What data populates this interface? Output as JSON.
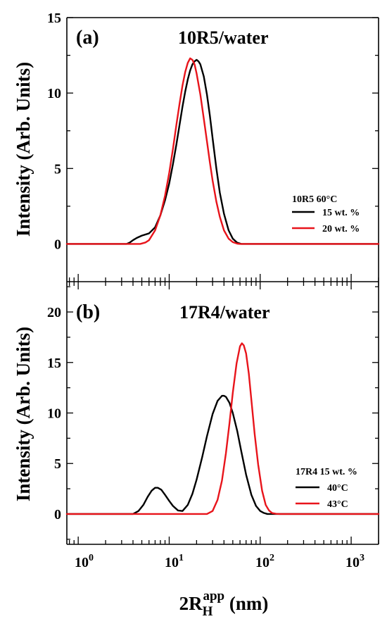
{
  "colors": {
    "black": "#000000",
    "red": "#e8141b"
  },
  "ylabel": "Intensity (Arb. Units)",
  "xlabel": {
    "main": "2R",
    "sub": "H",
    "sup": "app",
    "unit": " (nm)"
  },
  "x_tick_labels": [
    {
      "base": "10",
      "exp": "0"
    },
    {
      "base": "10",
      "exp": "1"
    },
    {
      "base": "10",
      "exp": "2"
    },
    {
      "base": "10",
      "exp": "3"
    }
  ],
  "chart_data": [
    {
      "type": "line",
      "panel_label": "(a)",
      "title": "10R5/water",
      "xscale": "log",
      "xlim": [
        0.75,
        2000
      ],
      "ylim": [
        -2.5,
        15
      ],
      "yticks": [
        0,
        5,
        10,
        15
      ],
      "y_tick_labels": [
        "0",
        "5",
        "10",
        "15"
      ],
      "legend": {
        "title": "10R5 60°C",
        "placement": "right-middle"
      },
      "series": [
        {
          "name": "15 wt. %",
          "color": "#000000",
          "x": [
            3.4,
            3.7,
            4.0,
            4.4,
            5.0,
            6.0,
            7.0,
            8.0,
            9.0,
            10.0,
            11.0,
            12.0,
            13.0,
            14.0,
            15.0,
            16.0,
            17.0,
            18.0,
            19.0,
            20.0,
            21.0,
            22.0,
            24.0,
            26.0,
            28.0,
            30.0,
            33.0,
            36.0,
            40.0,
            45.0,
            50.0,
            56.0,
            62.0
          ],
          "y": [
            0.0,
            0.1,
            0.25,
            0.4,
            0.55,
            0.7,
            1.1,
            1.9,
            2.9,
            4.0,
            5.3,
            6.6,
            7.9,
            9.1,
            10.1,
            10.9,
            11.5,
            11.9,
            12.1,
            12.2,
            12.1,
            11.9,
            11.1,
            9.9,
            8.5,
            7.0,
            5.0,
            3.4,
            2.0,
            0.9,
            0.35,
            0.08,
            0.0
          ]
        },
        {
          "name": "20 wt. %",
          "color": "#e8141b",
          "x": [
            4.8,
            5.5,
            6.0,
            7.0,
            8.0,
            9.0,
            10.0,
            11.0,
            12.0,
            13.0,
            14.0,
            15.0,
            16.0,
            17.0,
            18.0,
            19.0,
            20.0,
            22.0,
            24.0,
            26.0,
            28.0,
            30.0,
            33.0,
            36.0,
            40.0,
            45.0,
            50.0,
            56.0,
            60.0
          ],
          "y": [
            0.0,
            0.1,
            0.25,
            0.9,
            1.9,
            3.2,
            4.7,
            6.3,
            7.9,
            9.3,
            10.5,
            11.4,
            12.0,
            12.3,
            12.2,
            11.9,
            11.3,
            9.9,
            8.3,
            6.8,
            5.4,
            4.2,
            2.8,
            1.8,
            0.9,
            0.35,
            0.12,
            0.02,
            0.0
          ]
        }
      ]
    },
    {
      "type": "line",
      "panel_label": "(b)",
      "title": "17R4/water",
      "xscale": "log",
      "xlim": [
        0.75,
        2000
      ],
      "ylim": [
        -3,
        23
      ],
      "yticks": [
        0,
        5,
        10,
        15,
        20
      ],
      "y_tick_labels": [
        "0",
        "5",
        "10",
        "15",
        "20"
      ],
      "legend": {
        "title": "17R4 15 wt. %",
        "placement": "bottom-right"
      },
      "series": [
        {
          "name": "40°C",
          "color": "#000000",
          "x": [
            4.0,
            4.6,
            5.2,
            5.8,
            6.4,
            7.0,
            7.5,
            8.2,
            9.0,
            10.0,
            11.0,
            12.5,
            14.0,
            16.0,
            18.0,
            20.0,
            23.0,
            26.0,
            30.0,
            34.0,
            38.0,
            40.0,
            42.0,
            46.0,
            50.0,
            56.0,
            62.0,
            70.0,
            80.0,
            90.0,
            100.0,
            110.0,
            120.0
          ],
          "y": [
            0.0,
            0.3,
            0.9,
            1.7,
            2.3,
            2.6,
            2.6,
            2.4,
            1.9,
            1.3,
            0.8,
            0.35,
            0.3,
            0.9,
            2.0,
            3.4,
            5.6,
            7.7,
            9.9,
            11.2,
            11.7,
            11.7,
            11.6,
            11.0,
            10.0,
            8.2,
            6.2,
            3.9,
            1.9,
            0.8,
            0.3,
            0.1,
            0.0
          ]
        },
        {
          "name": "43°C",
          "color": "#e8141b",
          "x": [
            26.0,
            30.0,
            34.0,
            38.0,
            42.0,
            46.0,
            50.0,
            55.0,
            60.0,
            63.0,
            66.0,
            70.0,
            75.0,
            80.0,
            87.0,
            95.0,
            105.0,
            115.0,
            125.0,
            135.0,
            150.0,
            165.0
          ],
          "y": [
            0.0,
            0.3,
            1.4,
            3.3,
            6.0,
            9.0,
            12.0,
            14.9,
            16.6,
            16.9,
            16.7,
            15.9,
            13.9,
            11.3,
            7.9,
            4.9,
            2.3,
            0.9,
            0.35,
            0.1,
            0.02,
            0.0
          ]
        }
      ]
    }
  ]
}
